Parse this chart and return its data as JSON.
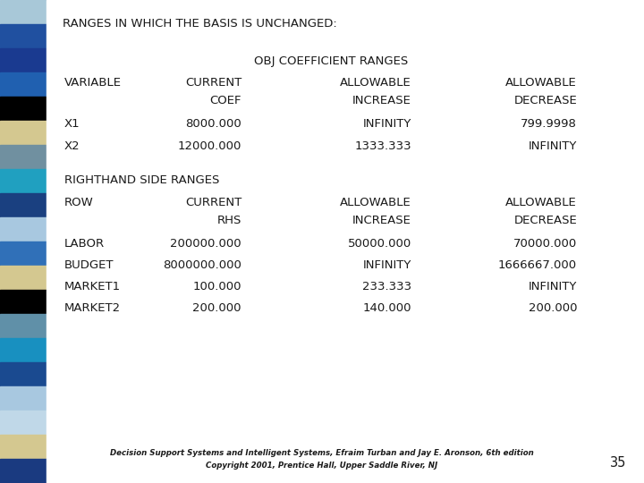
{
  "title": "RANGES IN WHICH THE BASIS IS UNCHANGED:",
  "background_color": "#ffffff",
  "obj_section_header": "OBJ COEFFICIENT RANGES",
  "obj_headers_row1": [
    "VARIABLE",
    "CURRENT",
    "ALLOWABLE",
    "ALLOWABLE"
  ],
  "obj_headers_row2": [
    "",
    "COEF",
    "INCREASE",
    "DECREASE"
  ],
  "obj_data": [
    [
      "X1",
      "8000.000",
      "INFINITY",
      "799.9998"
    ],
    [
      "X2",
      "12000.000",
      "1333.333",
      "INFINITY"
    ]
  ],
  "rhs_section_header": "RIGHTHAND SIDE RANGES",
  "rhs_headers_row1": [
    "ROW",
    "CURRENT",
    "ALLOWABLE",
    "ALLOWABLE"
  ],
  "rhs_headers_row2": [
    "",
    "RHS",
    "INCREASE",
    "DECREASE"
  ],
  "rhs_data": [
    [
      "LABOR",
      "200000.000",
      "50000.000",
      "70000.000"
    ],
    [
      "BUDGET",
      "8000000.000",
      "INFINITY",
      "1666667.000"
    ],
    [
      "MARKET1",
      "100.000",
      "233.333",
      "INFINITY"
    ],
    [
      "MARKET2",
      "200.000",
      "140.000",
      "200.000"
    ]
  ],
  "footer_line1": "Decision Support Systems and Intelligent Systems, Efraim Turban and Jay E. Aronson, 6th edition",
  "footer_line2": "Copyright 2001, Prentice Hall, Upper Saddle River, NJ",
  "page_number": "35",
  "font_size": 9.5,
  "text_color": "#1a1a1a",
  "stripe_colors": [
    "#a8c8d8",
    "#2050a0",
    "#1a3a90",
    "#2060b0",
    "#000000",
    "#d4c890",
    "#7090a0",
    "#20a0c0",
    "#1a4080",
    "#a8c8e0",
    "#3070b8",
    "#d4c890",
    "#000000",
    "#6090a8",
    "#1890c0",
    "#1a4a90",
    "#a8c8e0",
    "#c0d8e8",
    "#d4c890",
    "#1a3a80"
  ]
}
